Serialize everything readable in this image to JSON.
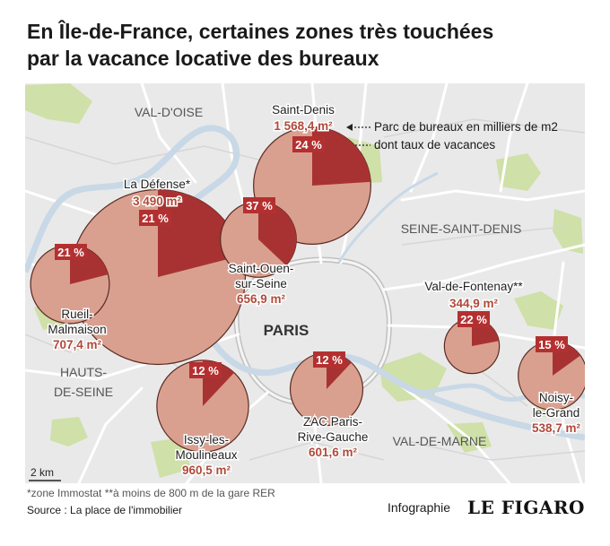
{
  "title": {
    "line1": "En Île-de-France, certaines zones très touchées",
    "line2": "par la vacance locative des bureaux"
  },
  "colors": {
    "bubble": "#d9a090",
    "slice": "#a83232",
    "badge": "#b43030",
    "value_text": "#b04a3a",
    "label_text": "#222222",
    "water": "#c8d8e6",
    "green": "#cfe0a8",
    "land": "#e9e9e9"
  },
  "map": {
    "regions": [
      {
        "id": "val-d-oise",
        "text": "VAL-D'OISE"
      },
      {
        "id": "seine-saint-denis",
        "text": "SEINE-SAINT-DENIS"
      },
      {
        "id": "hauts-de-seine-1",
        "text": "HAUTS-"
      },
      {
        "id": "hauts-de-seine-2",
        "text": "DE-SEINE"
      },
      {
        "id": "val-de-marne",
        "text": "VAL-DE-MARNE"
      },
      {
        "id": "paris",
        "text": "PARIS"
      }
    ],
    "scale_label": "2 km",
    "legend": {
      "surface": "Parc de bureaux en milliers de m2",
      "rate": "dont taux de vacances"
    },
    "zones": [
      {
        "id": "saint-denis",
        "name_lines": [
          "Saint-Denis"
        ],
        "surface": "1 568,4 m²",
        "surface_value": 1568.4,
        "rate": "24 %",
        "rate_value": 24
      },
      {
        "id": "la-defense",
        "name_lines": [
          "La Défense*"
        ],
        "surface": "3 490 m²",
        "surface_value": 3490,
        "rate": "21 %",
        "rate_value": 21
      },
      {
        "id": "saint-ouen",
        "name_lines": [
          "Saint-Ouen-",
          "sur-Seine"
        ],
        "surface": "656,9 m²",
        "surface_value": 656.9,
        "rate": "37 %",
        "rate_value": 37
      },
      {
        "id": "rueil",
        "name_lines": [
          "Rueil-",
          "Malmaison"
        ],
        "surface": "707,4 m²",
        "surface_value": 707.4,
        "rate": "21 %",
        "rate_value": 21
      },
      {
        "id": "val-de-fontenay",
        "name_lines": [
          "Val-de-Fontenay**"
        ],
        "surface": "344,9 m²",
        "surface_value": 344.9,
        "rate": "22 %",
        "rate_value": 22
      },
      {
        "id": "issy",
        "name_lines": [
          "Issy-les-",
          "Moulineaux"
        ],
        "surface": "960,5 m²",
        "surface_value": 960.5,
        "rate": "12 %",
        "rate_value": 12
      },
      {
        "id": "zac-paris-rive-gauche",
        "name_lines": [
          "ZAC Paris-",
          "Rive-Gauche"
        ],
        "surface": "601,6 m²",
        "surface_value": 601.6,
        "rate": "12 %",
        "rate_value": 12
      },
      {
        "id": "noisy-le-grand",
        "name_lines": [
          "Noisy-",
          "le-Grand"
        ],
        "surface": "538,7 m²",
        "surface_value": 538.7,
        "rate": "15 %",
        "rate_value": 15
      }
    ]
  },
  "footer": {
    "note": "*zone Immostat **à moins de 800 m de la gare RER",
    "source": "Source : La place de l'immobilier",
    "credit": "Infographie",
    "logo": "LE FIGARO"
  }
}
